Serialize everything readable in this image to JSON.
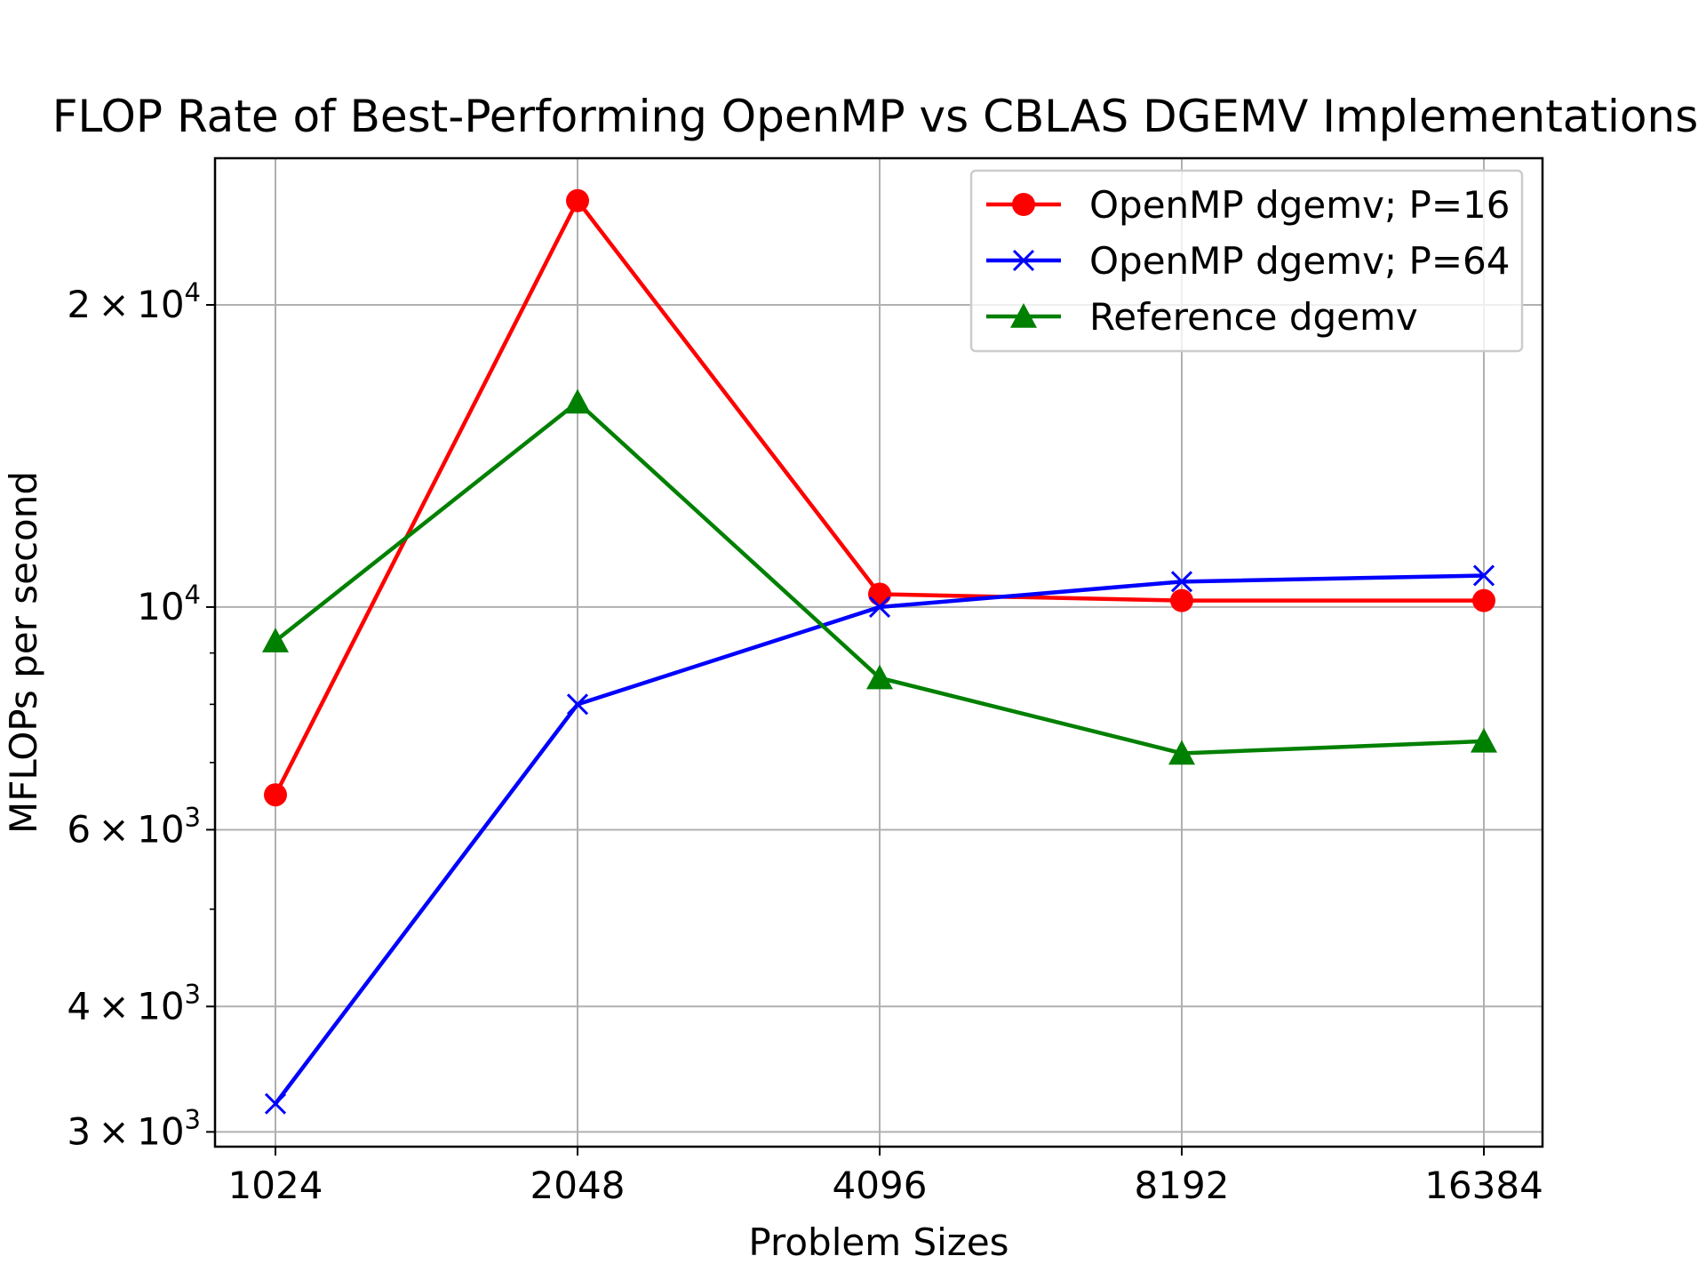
{
  "chart_data": {
    "type": "line",
    "title": "FLOP Rate of Best-Performing OpenMP vs CBLAS DGEMV Implementations",
    "xlabel": "Problem Sizes",
    "ylabel": "MFLOPs per second",
    "categories": [
      "1024",
      "2048",
      "4096",
      "8192",
      "16384"
    ],
    "y_scale": "log",
    "ylim": [
      2900,
      28000
    ],
    "y_major_ticks": [
      {
        "value": 3000,
        "mantissa": "3",
        "exp": "3"
      },
      {
        "value": 4000,
        "mantissa": "4",
        "exp": "3"
      },
      {
        "value": 6000,
        "mantissa": "6",
        "exp": "3"
      },
      {
        "value": 10000,
        "mantissa": "",
        "exp": "4"
      },
      {
        "value": 20000,
        "mantissa": "2",
        "exp": "4"
      }
    ],
    "y_minor_ticks": [
      5000,
      7000,
      8000,
      9000
    ],
    "grid": true,
    "legend_position": "top-right",
    "series": [
      {
        "name": "OpenMP dgemv; P=16",
        "color": "#ff0000",
        "marker": "circle",
        "values": [
          6500,
          25400,
          10300,
          10150,
          10150
        ]
      },
      {
        "name": "OpenMP dgemv; P=64",
        "color": "#0000ff",
        "marker": "x",
        "values": [
          3200,
          8000,
          10000,
          10600,
          10750
        ]
      },
      {
        "name": "Reference dgemv",
        "color": "#008000",
        "marker": "triangle",
        "values": [
          9250,
          16000,
          8500,
          7150,
          7350
        ]
      }
    ]
  }
}
